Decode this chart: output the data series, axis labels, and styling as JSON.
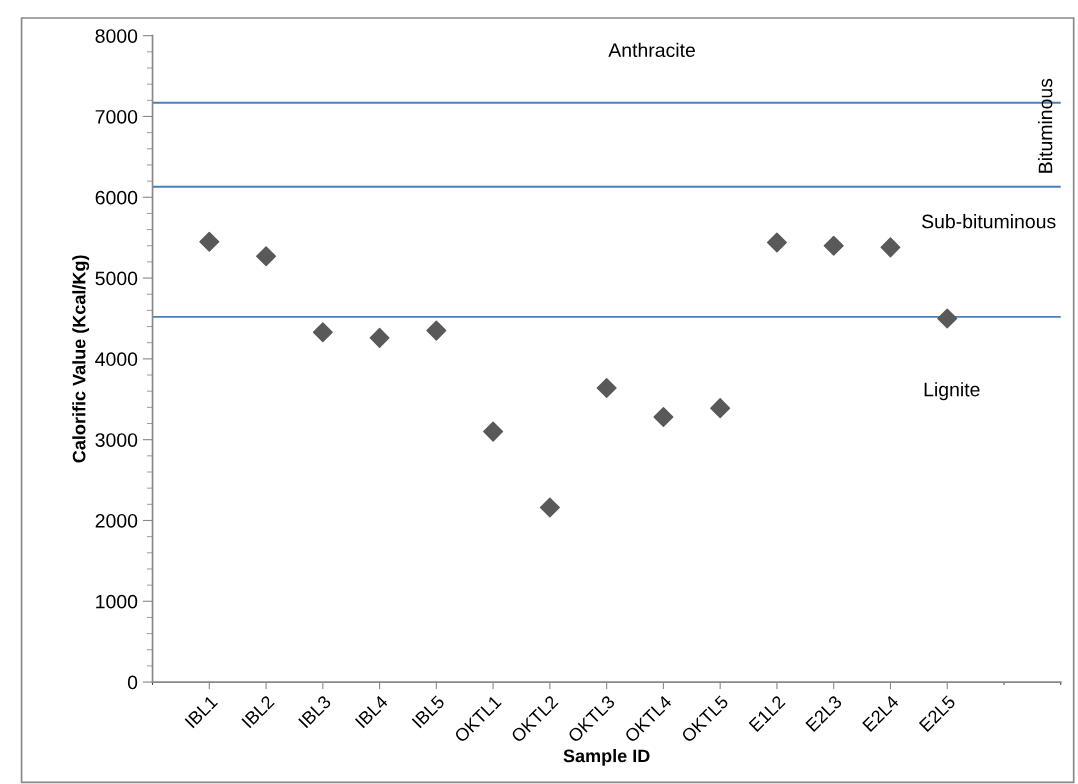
{
  "chart_data": {
    "type": "scatter",
    "xlabel": "Sample ID",
    "ylabel": "Calorific Value (Kcal/Kg)",
    "categories": [
      "IBL1",
      "IBL2",
      "IBL3",
      "IBL4",
      "IBL5",
      "OKTL1",
      "OKTL2",
      "OKTL3",
      "OKTL4",
      "OKTL5",
      "E1L2",
      "E2L3",
      "E2L4",
      "E2L5"
    ],
    "series": [
      {
        "color": "#595959",
        "values": [
          5450,
          5270,
          4330,
          4260,
          4350,
          3100,
          2160,
          3640,
          3280,
          3390,
          5440,
          5400,
          5380,
          4500
        ]
      }
    ],
    "marker": "diamond",
    "ylim": [
      0,
      8000
    ],
    "yticks": [
      0,
      1000,
      2000,
      3000,
      4000,
      5000,
      6000,
      7000,
      8000
    ],
    "ref_lines": [
      {
        "axis": "y",
        "value": 7170,
        "color": "#4a7ebb"
      },
      {
        "axis": "y",
        "value": 6130,
        "color": "#4a7ebb"
      },
      {
        "axis": "y",
        "value": 4520,
        "color": "#4a7ebb"
      }
    ],
    "annotations": [
      "Anthracite",
      "Bituminous",
      "Sub-bituminous",
      "Lignite"
    ],
    "grid": false
  }
}
